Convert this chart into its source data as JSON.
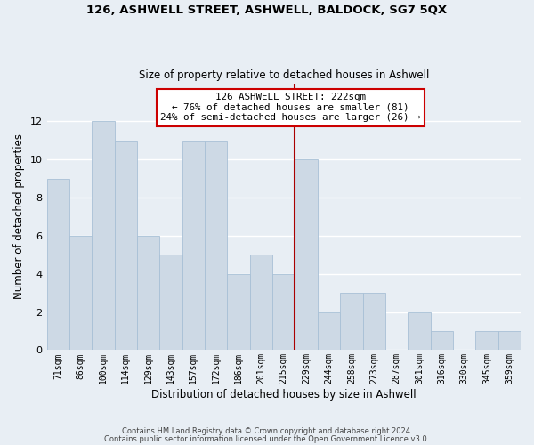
{
  "title": "126, ASHWELL STREET, ASHWELL, BALDOCK, SG7 5QX",
  "subtitle": "Size of property relative to detached houses in Ashwell",
  "xlabel": "Distribution of detached houses by size in Ashwell",
  "ylabel": "Number of detached properties",
  "bar_labels": [
    "71sqm",
    "86sqm",
    "100sqm",
    "114sqm",
    "129sqm",
    "143sqm",
    "157sqm",
    "172sqm",
    "186sqm",
    "201sqm",
    "215sqm",
    "229sqm",
    "244sqm",
    "258sqm",
    "273sqm",
    "287sqm",
    "301sqm",
    "316sqm",
    "330sqm",
    "345sqm",
    "359sqm"
  ],
  "bar_values": [
    9,
    6,
    12,
    11,
    6,
    5,
    11,
    11,
    4,
    5,
    4,
    10,
    2,
    3,
    3,
    0,
    2,
    1,
    0,
    1,
    1
  ],
  "bar_color": "#cdd9e5",
  "bar_edge_color": "#a8c0d6",
  "ylim": [
    0,
    14
  ],
  "yticks": [
    0,
    2,
    4,
    6,
    8,
    10,
    12
  ],
  "vline_x": 10.5,
  "vline_color": "#aa0000",
  "annotation_title": "126 ASHWELL STREET: 222sqm",
  "annotation_line1": "← 76% of detached houses are smaller (81)",
  "annotation_line2": "24% of semi-detached houses are larger (26) →",
  "annotation_box_color": "#ffffff",
  "annotation_box_edge": "#cc0000",
  "footer1": "Contains HM Land Registry data © Crown copyright and database right 2024.",
  "footer2": "Contains public sector information licensed under the Open Government Licence v3.0.",
  "background_color": "#e8eef4",
  "grid_color": "#ffffff",
  "title_fontsize": 9.5,
  "subtitle_fontsize": 8.5
}
